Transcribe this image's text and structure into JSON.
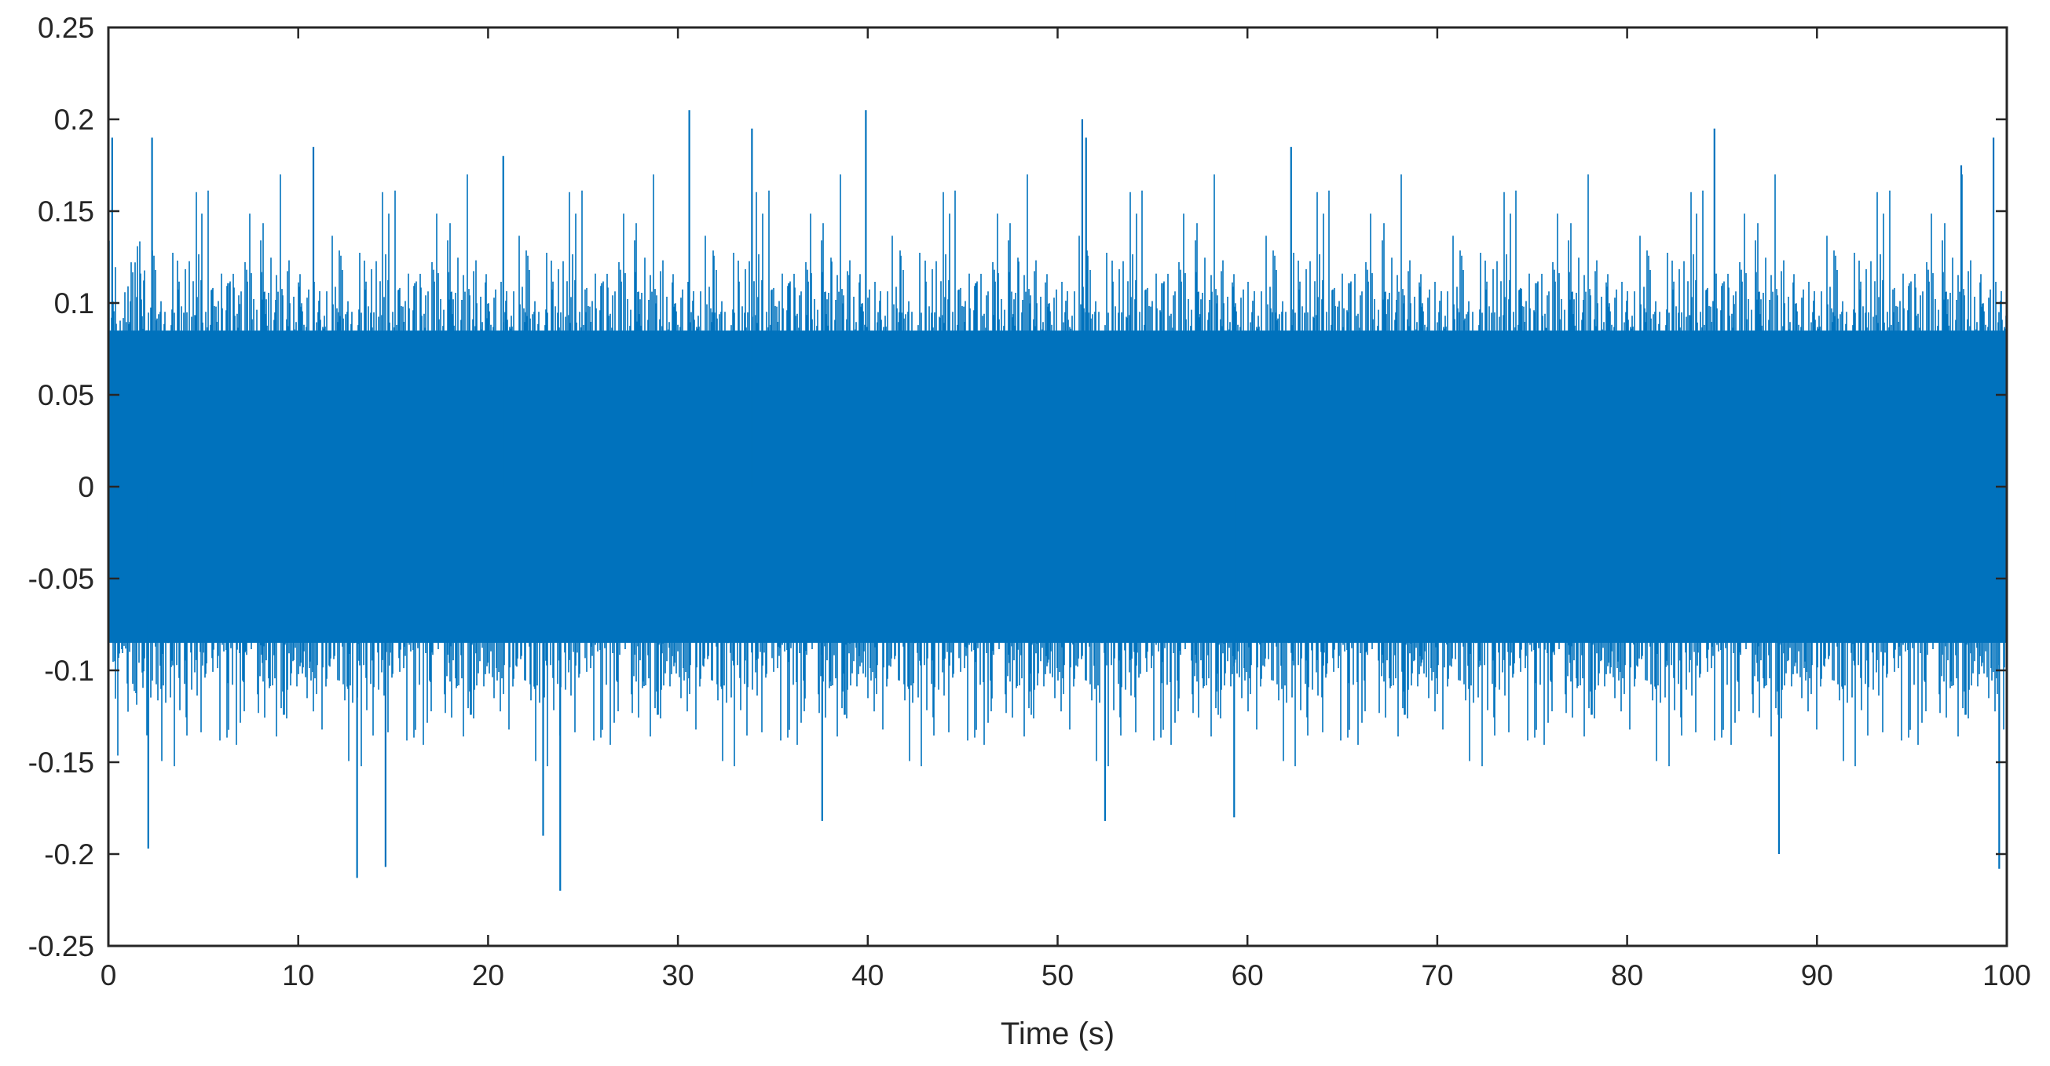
{
  "chart_data": {
    "type": "line",
    "title": "",
    "xlabel": "Time (s)",
    "ylabel": "",
    "xlim": [
      0,
      100
    ],
    "ylim": [
      -0.25,
      0.25
    ],
    "x_ticks": [
      0,
      10,
      20,
      30,
      40,
      50,
      60,
      70,
      80,
      90,
      100
    ],
    "x_tick_labels": [
      "0",
      "10",
      "20",
      "30",
      "40",
      "50",
      "60",
      "70",
      "80",
      "90",
      "100"
    ],
    "y_ticks": [
      0.25,
      0.2,
      0.15,
      0.1,
      0.05,
      0,
      -0.05,
      -0.1,
      -0.15,
      -0.2,
      -0.25
    ],
    "y_tick_labels": [
      "0.25",
      "0.2",
      "0.15",
      "0.1",
      "0.05",
      "0",
      "-0.05",
      "-0.1",
      "-0.15",
      "-0.2",
      "-0.25"
    ],
    "grid": false,
    "legend": "none",
    "series_color": "#0072BD",
    "series": [
      {
        "description": "dense noise signal, approx. zero-mean, sampled continuously from 0 to 100 s",
        "envelope_upper": [
          0.12,
          0.11,
          0.115,
          0.11,
          0.12,
          0.115,
          0.11,
          0.12,
          0.115,
          0.11,
          0.12
        ],
        "envelope_lower": [
          -0.125,
          -0.12,
          -0.12,
          -0.125,
          -0.12,
          -0.12,
          -0.125,
          -0.12,
          -0.12,
          -0.125,
          -0.12
        ],
        "peaks_positive": [
          {
            "x": 0.2,
            "y": 0.19
          },
          {
            "x": 2.3,
            "y": 0.19
          },
          {
            "x": 10.8,
            "y": 0.185
          },
          {
            "x": 20.8,
            "y": 0.18
          },
          {
            "x": 30.6,
            "y": 0.205
          },
          {
            "x": 33.9,
            "y": 0.195
          },
          {
            "x": 39.9,
            "y": 0.205
          },
          {
            "x": 51.3,
            "y": 0.2
          },
          {
            "x": 51.5,
            "y": 0.19
          },
          {
            "x": 62.3,
            "y": 0.185
          },
          {
            "x": 84.6,
            "y": 0.195
          },
          {
            "x": 97.6,
            "y": 0.175
          },
          {
            "x": 99.3,
            "y": 0.19
          }
        ],
        "peaks_negative": [
          {
            "x": 2.1,
            "y": -0.197
          },
          {
            "x": 13.1,
            "y": -0.213
          },
          {
            "x": 14.6,
            "y": -0.207
          },
          {
            "x": 22.9,
            "y": -0.19
          },
          {
            "x": 23.8,
            "y": -0.22
          },
          {
            "x": 37.6,
            "y": -0.182
          },
          {
            "x": 52.5,
            "y": -0.182
          },
          {
            "x": 59.3,
            "y": -0.18
          },
          {
            "x": 88.0,
            "y": -0.2
          },
          {
            "x": 99.6,
            "y": -0.208
          }
        ]
      }
    ]
  }
}
